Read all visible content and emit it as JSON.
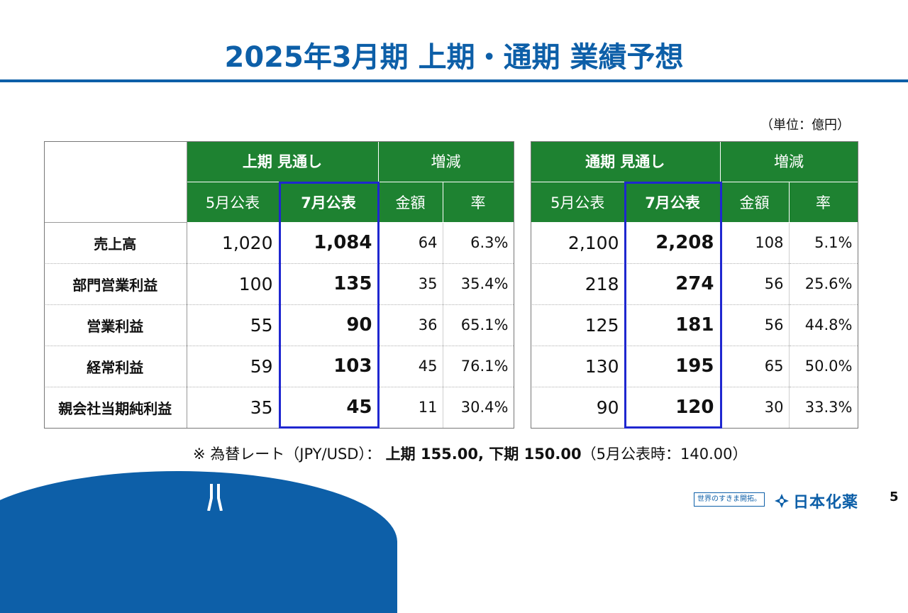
{
  "title": "2025年3月期 上期・通期 業績予想",
  "unit": "（単位：億円）",
  "tables": [
    {
      "header_main": "上期 見通し",
      "header_diff": "増減",
      "sub": [
        "5月公表",
        "7月公表",
        "金額",
        "率"
      ],
      "rows": [
        {
          "label": "売上高",
          "may": "1,020",
          "jul": "1,084",
          "amt": "64",
          "rate": "6.3%"
        },
        {
          "label": "部門営業利益",
          "may": "100",
          "jul": "135",
          "amt": "35",
          "rate": "35.4%"
        },
        {
          "label": "営業利益",
          "may": "55",
          "jul": "90",
          "amt": "36",
          "rate": "65.1%"
        },
        {
          "label": "経常利益",
          "may": "59",
          "jul": "103",
          "amt": "45",
          "rate": "76.1%"
        },
        {
          "label": "親会社当期純利益",
          "may": "35",
          "jul": "45",
          "amt": "11",
          "rate": "30.4%"
        }
      ]
    },
    {
      "header_main": "通期 見通し",
      "header_diff": "増減",
      "sub": [
        "5月公表",
        "7月公表",
        "金額",
        "率"
      ],
      "rows": [
        {
          "may": "2,100",
          "jul": "2,208",
          "amt": "108",
          "rate": "5.1%"
        },
        {
          "may": "218",
          "jul": "274",
          "amt": "56",
          "rate": "25.6%"
        },
        {
          "may": "125",
          "jul": "181",
          "amt": "56",
          "rate": "44.8%"
        },
        {
          "may": "130",
          "jul": "195",
          "amt": "65",
          "rate": "50.0%"
        },
        {
          "may": "90",
          "jul": "120",
          "amt": "30",
          "rate": "33.3%"
        }
      ]
    }
  ],
  "note": {
    "prefix": "※ 為替レート（JPY/USD）：",
    "bold": "上期 155.00, 下期 150.00",
    "suffix": "（5月公表時：140.00）"
  },
  "footer": {
    "slogan": "世界のすきま開拓。",
    "logo_text": "日本化薬",
    "page": "5"
  },
  "colors": {
    "title_blue": "#0d5fa8",
    "header_green": "#1e8231",
    "highlight_box": "#1f27d0"
  }
}
